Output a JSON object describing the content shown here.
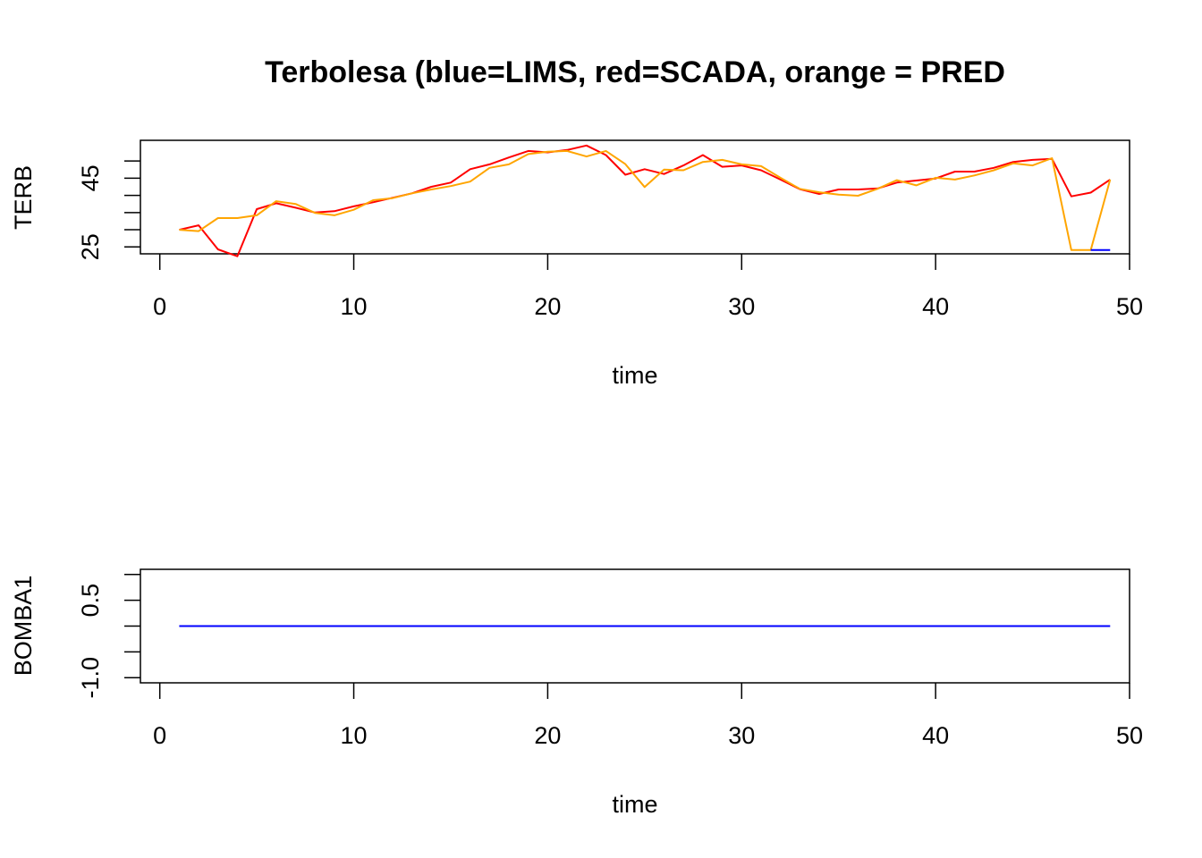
{
  "title": "Terbolesa (blue=LIMS, red=SCADA, orange = PRED",
  "chart_data": [
    {
      "type": "line",
      "name": "TERB",
      "xlabel": "time",
      "ylabel": "TERB",
      "xlim": [
        -1,
        50
      ],
      "ylim": [
        23,
        56
      ],
      "x_ticks": [
        "0",
        "10",
        "20",
        "30",
        "40",
        "50"
      ],
      "y_ticks": [
        "25",
        "45"
      ],
      "y_minor_ticks": [
        25,
        30,
        35,
        40,
        45,
        50
      ],
      "x": [
        1,
        2,
        3,
        4,
        5,
        6,
        7,
        8,
        9,
        10,
        11,
        12,
        13,
        14,
        15,
        16,
        17,
        18,
        19,
        20,
        21,
        22,
        23,
        24,
        25,
        26,
        27,
        28,
        29,
        30,
        31,
        32,
        33,
        34,
        35,
        36,
        37,
        38,
        39,
        40,
        41,
        42,
        43,
        44,
        45,
        46,
        47,
        48,
        49
      ],
      "series": [
        {
          "color": "#ff0000",
          "values": [
            30,
            31.3,
            24.3,
            22.3,
            36,
            37.7,
            36.4,
            35,
            35.4,
            36.8,
            38,
            39.3,
            40.6,
            42.5,
            43.7,
            47.6,
            49,
            51,
            52.9,
            52.5,
            53.2,
            54.5,
            51.7,
            46,
            47.6,
            46.2,
            48.7,
            51.7,
            48.3,
            48.7,
            47.3,
            44.6,
            41.8,
            40.4,
            41.7,
            41.7,
            42,
            43.7,
            44.3,
            44.9,
            46.9,
            46.9,
            48,
            49.7,
            50.3,
            50.6,
            39.7,
            40.8,
            44.6
          ]
        },
        {
          "color": "#ffa500",
          "values": [
            30,
            29.6,
            33.4,
            33.4,
            34.2,
            38.3,
            37.5,
            34.9,
            34.2,
            35.8,
            38.6,
            39.2,
            40.6,
            41.7,
            42.7,
            44,
            48,
            49,
            52,
            52.7,
            52.9,
            51.3,
            52.9,
            49.1,
            42.4,
            47.5,
            47.3,
            49.7,
            50.3,
            49,
            48.5,
            45.1,
            41.9,
            40.9,
            40.2,
            39.9,
            41.9,
            44.4,
            42.9,
            45.1,
            44.6,
            45.8,
            47.3,
            49.3,
            48.7,
            50.8,
            24.1,
            24.1,
            44.6
          ]
        },
        {
          "color": "#0000ff",
          "values": [
            null,
            null,
            null,
            null,
            null,
            null,
            null,
            null,
            null,
            null,
            null,
            null,
            null,
            null,
            null,
            null,
            null,
            null,
            null,
            null,
            null,
            null,
            null,
            null,
            null,
            null,
            null,
            null,
            null,
            null,
            null,
            null,
            null,
            null,
            null,
            null,
            null,
            null,
            null,
            null,
            null,
            null,
            null,
            null,
            null,
            null,
            null,
            24.1,
            24.1
          ]
        }
      ]
    },
    {
      "type": "line",
      "name": "BOMBA1",
      "xlabel": "time",
      "ylabel": "BOMBA1",
      "xlim": [
        -1,
        50
      ],
      "ylim": [
        -1.1,
        1.1
      ],
      "x_ticks": [
        "0",
        "10",
        "20",
        "30",
        "40",
        "50"
      ],
      "y_ticks": [
        "-1.0",
        "0.5"
      ],
      "y_minor_ticks": [
        -1,
        -0.5,
        0,
        0.5,
        1
      ],
      "x": [
        1,
        49
      ],
      "series": [
        {
          "color": "#0000ff",
          "values": [
            0,
            0
          ]
        }
      ]
    }
  ]
}
